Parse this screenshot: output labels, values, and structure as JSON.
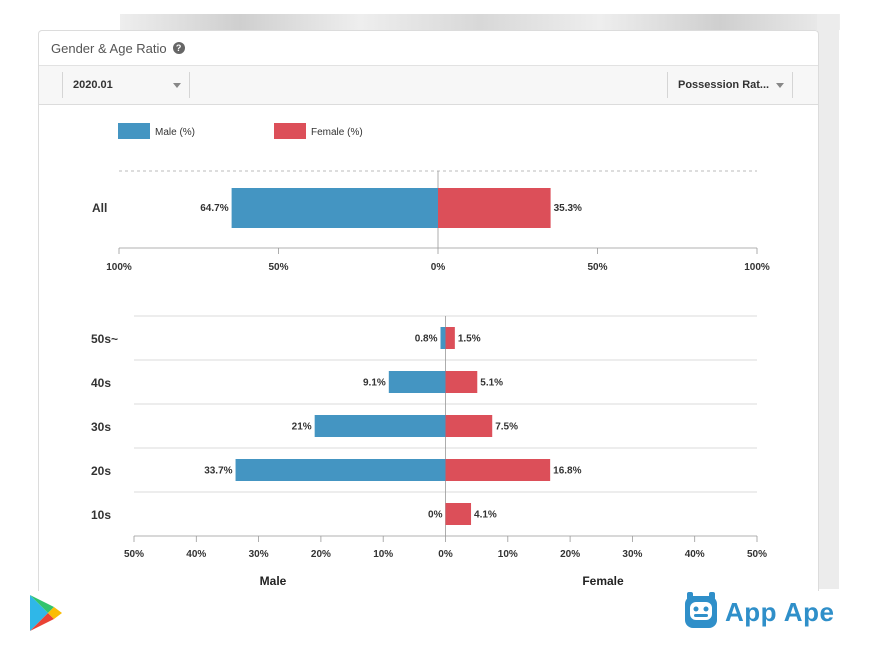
{
  "card": {
    "title": "Gender & Age Ratio",
    "help_icon": "question-circle-icon"
  },
  "filters": {
    "period": "2020.01",
    "metric": "Possession Rat..."
  },
  "colors": {
    "male": "#4495c2",
    "female": "#dc4f59"
  },
  "legend": {
    "male": "Male (%)",
    "female": "Female (%)"
  },
  "chart_data": [
    {
      "type": "bar",
      "orientation": "horizontal-diverging",
      "categories": [
        "All"
      ],
      "series": [
        {
          "name": "Male (%)",
          "values": [
            64.7
          ],
          "labels": [
            "64.7%"
          ]
        },
        {
          "name": "Female (%)",
          "values": [
            35.3
          ],
          "labels": [
            "35.3%"
          ]
        }
      ],
      "xlim": [
        -100,
        100
      ],
      "ticks": [
        "100%",
        "50%",
        "0%",
        "50%",
        "100%"
      ],
      "legend_position": "top-left"
    },
    {
      "type": "bar",
      "orientation": "horizontal-diverging",
      "categories": [
        "50s~",
        "40s",
        "30s",
        "20s",
        "10s"
      ],
      "series": [
        {
          "name": "Male (%)",
          "values": [
            0.8,
            9.1,
            21,
            33.7,
            0
          ],
          "labels": [
            "0.8%",
            "9.1%",
            "21%",
            "33.7%",
            "0%"
          ]
        },
        {
          "name": "Female (%)",
          "values": [
            1.5,
            5.1,
            7.5,
            16.8,
            4.1
          ],
          "labels": [
            "1.5%",
            "5.1%",
            "7.5%",
            "16.8%",
            "4.1%"
          ]
        }
      ],
      "xlim": [
        -50,
        50
      ],
      "ticks": [
        "50%",
        "40%",
        "30%",
        "20%",
        "10%",
        "0%",
        "10%",
        "20%",
        "30%",
        "40%",
        "50%"
      ],
      "xlabel_left": "Male",
      "xlabel_right": "Female"
    }
  ],
  "brand": {
    "app_ape": "App Ape",
    "store_icon": "google-play-icon"
  }
}
